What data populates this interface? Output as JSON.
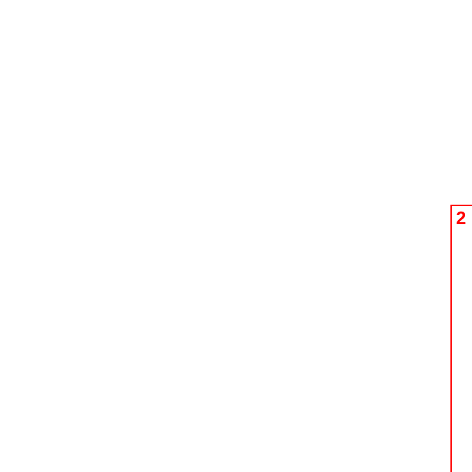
{
  "annotation": {
    "label": "2"
  }
}
